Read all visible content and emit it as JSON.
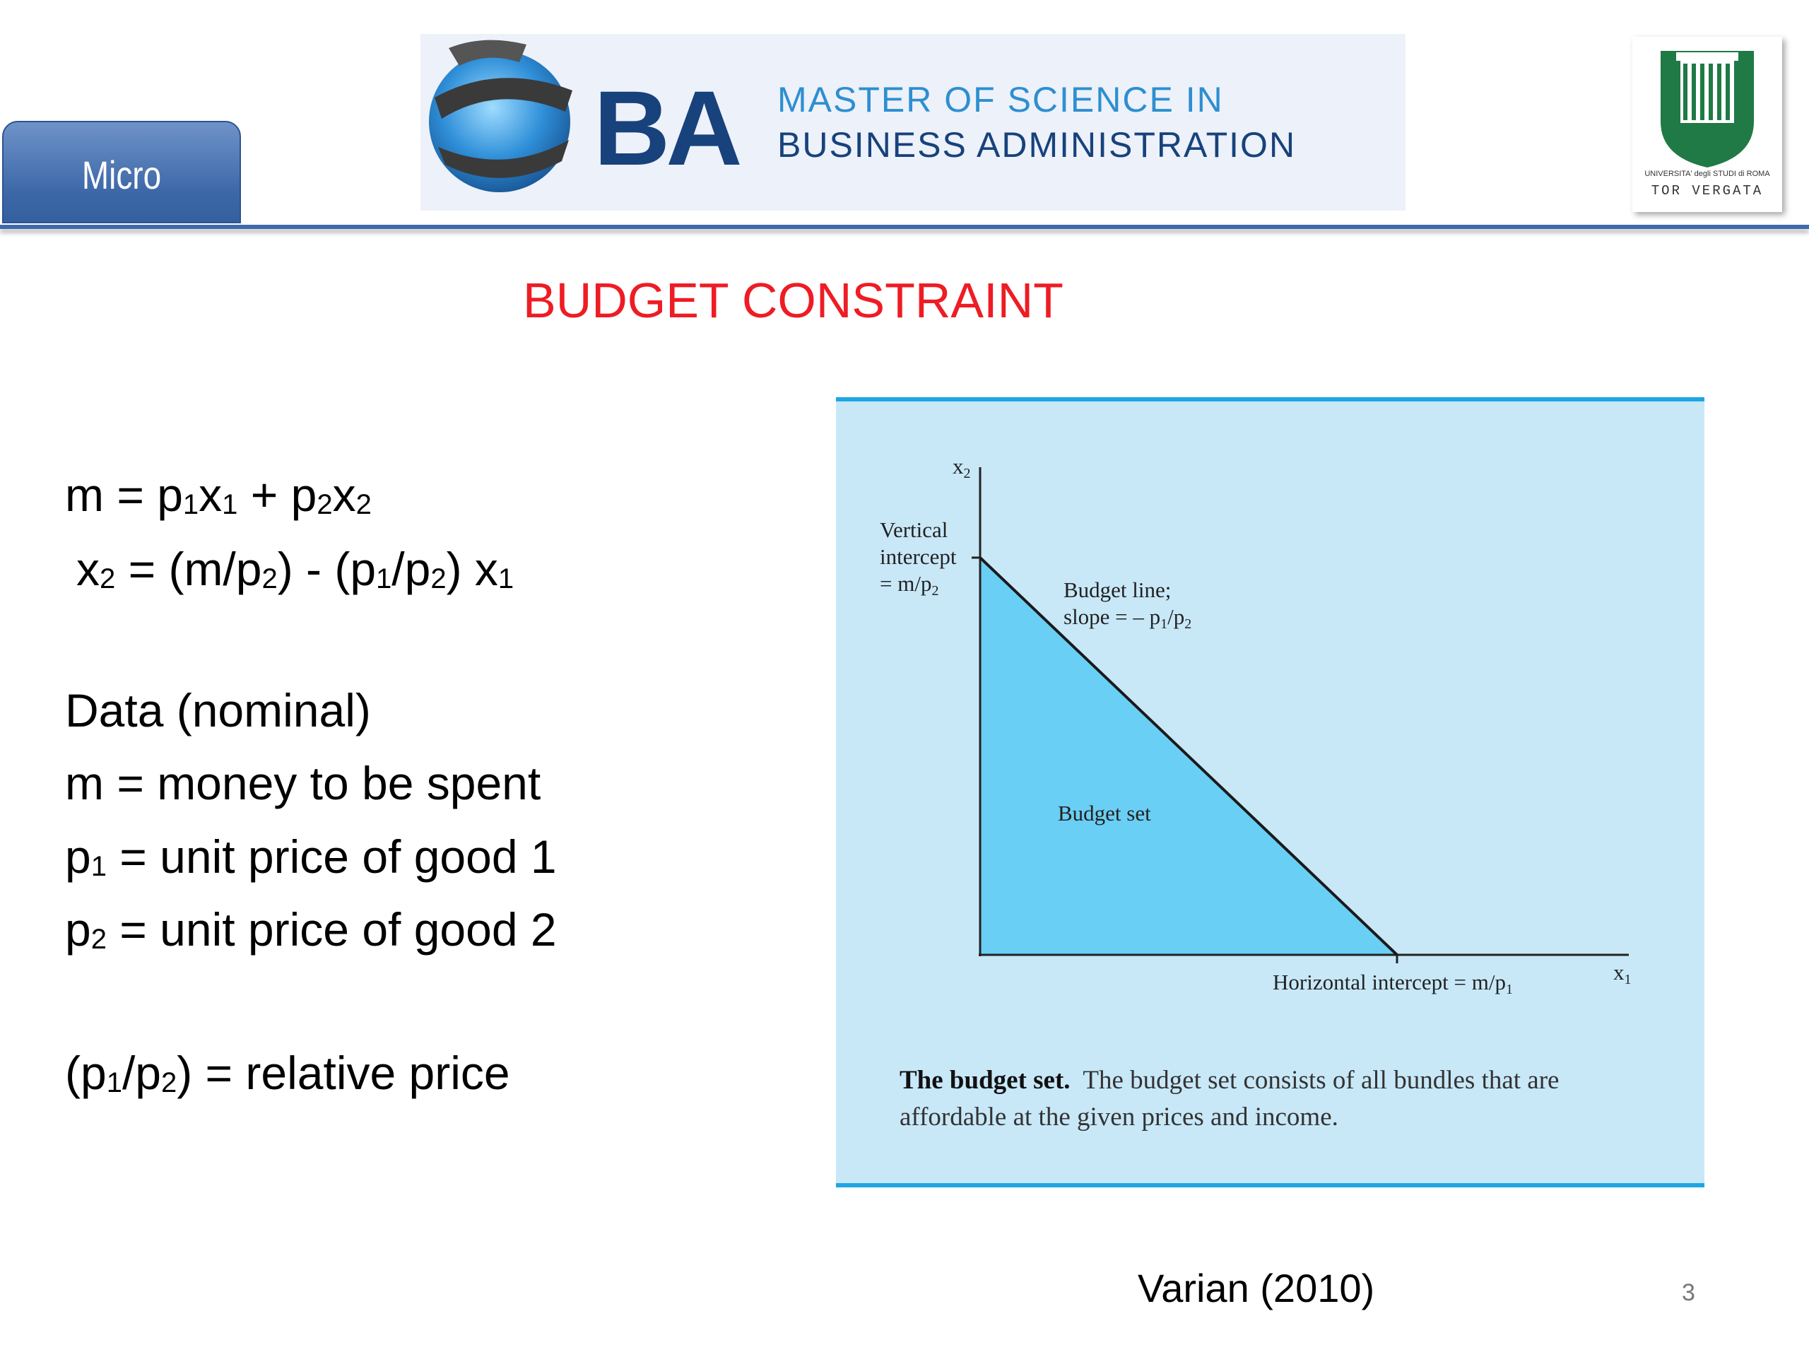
{
  "header": {
    "tab_label": "Micro",
    "banner_logo_text": "BA",
    "banner_line1": "MASTER OF SCIENCE IN",
    "banner_line2": "BUSINESS ADMINISTRATION",
    "crest_motto": "UNIVERSITA' degli STUDI di ROMA",
    "crest_city": "TOR VERGATA"
  },
  "slide": {
    "title": "BUDGET CONSTRAINT",
    "citation": "Varian (2010)",
    "page_number": "3"
  },
  "figure": {
    "axis_x_label": "x",
    "axis_x_sub": "1",
    "axis_y_label": "x",
    "axis_y_sub": "2",
    "vertical_intercept_line1": "Vertical",
    "vertical_intercept_line2": "intercept",
    "vertical_intercept_line3": "= m/p",
    "vertical_intercept_sub": "2",
    "budget_line_line1": "Budget line;",
    "budget_line_line2": "slope = – p",
    "budget_line_sub1": "1",
    "budget_line_mid": "/p",
    "budget_line_sub2": "2",
    "budget_set_label": "Budget set",
    "horizontal_intercept": "Horizontal intercept = m/p",
    "horizontal_intercept_sub": "1",
    "caption_bold": "The budget set.",
    "caption_text": "The budget set consists of all bundles that are affordable at the given prices and income.",
    "fill_color": "#6acff4",
    "background_color": "#c8e8f8"
  }
}
